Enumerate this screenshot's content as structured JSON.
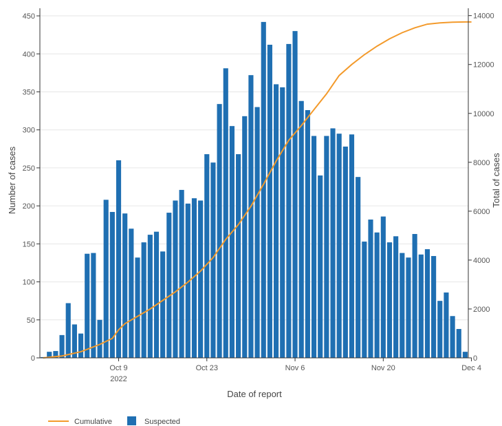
{
  "chart_data": {
    "type": "bar",
    "xlabel": "Date of report",
    "ylabel": "Number of cases",
    "y2label": "Total of cases",
    "x_ticks": [
      {
        "day": 12,
        "label": "Oct 9",
        "sublabel": "2022"
      },
      {
        "day": 26,
        "label": "Oct 23",
        "sublabel": ""
      },
      {
        "day": 40,
        "label": "Nov 6",
        "sublabel": ""
      },
      {
        "day": 54,
        "label": "Nov 20",
        "sublabel": ""
      },
      {
        "day": 68,
        "label": "Dec 4",
        "sublabel": ""
      }
    ],
    "ylim": [
      0,
      460
    ],
    "y_ticks": [
      0,
      50,
      100,
      150,
      200,
      250,
      300,
      350,
      400,
      450
    ],
    "y2lim": [
      0,
      14300
    ],
    "y2_ticks": [
      0,
      2000,
      4000,
      6000,
      8000,
      10000,
      12000,
      14000
    ],
    "grid": "horizontal",
    "legend_position": "bottom-left",
    "colors": {
      "suspected": "#1f6fb2",
      "cumulative": "#f39a2b",
      "grid": "#e6e6e6",
      "axis": "#333333"
    },
    "series": [
      {
        "name": "Suspected",
        "kind": "bar",
        "values": [
          1,
          8,
          9,
          30,
          72,
          44,
          32,
          137,
          138,
          50,
          208,
          192,
          260,
          190,
          170,
          132,
          152,
          162,
          166,
          140,
          191,
          207,
          221,
          203,
          210,
          207,
          268,
          257,
          334,
          381,
          305,
          268,
          318,
          372,
          330,
          442,
          412,
          360,
          356,
          413,
          430,
          338,
          326,
          292,
          240,
          292,
          302,
          295,
          278,
          294,
          238,
          153,
          182,
          165,
          186,
          152,
          160,
          138,
          132,
          163,
          136,
          143,
          134,
          75,
          86,
          55,
          38,
          8
        ]
      },
      {
        "name": "Cumulative",
        "kind": "line",
        "axis": "right",
        "x": [
          0,
          3,
          6,
          9,
          11,
          12,
          13,
          15,
          17,
          19,
          21,
          23,
          25,
          27,
          29,
          31,
          33,
          35,
          37,
          39,
          41,
          43,
          45,
          47,
          49,
          51,
          53,
          55,
          57,
          59,
          61,
          63,
          65,
          67,
          68
        ],
        "values": [
          0,
          80,
          250,
          550,
          800,
          1150,
          1400,
          1700,
          2000,
          2350,
          2700,
          3100,
          3550,
          4100,
          4850,
          5450,
          6200,
          7100,
          8050,
          8900,
          9500,
          10150,
          10800,
          11550,
          12000,
          12400,
          12750,
          13050,
          13300,
          13500,
          13650,
          13700,
          13730,
          13740,
          13740
        ]
      }
    ]
  }
}
